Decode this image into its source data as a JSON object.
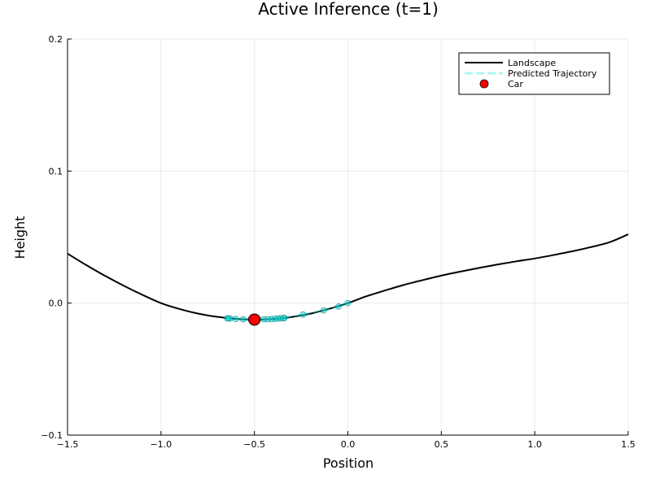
{
  "chart_data": {
    "type": "line",
    "title": "Active Inference (t=1)",
    "xlabel": "Position",
    "ylabel": "Height",
    "xlim": [
      -1.5,
      1.5
    ],
    "ylim": [
      -0.1,
      0.2
    ],
    "xticks": [
      -1.5,
      -1.0,
      -0.5,
      0.0,
      0.5,
      1.0,
      1.5
    ],
    "xtick_labels": [
      "−1.5",
      "−1.0",
      "−0.5",
      "0.0",
      "0.5",
      "1.0",
      "1.5"
    ],
    "yticks": [
      -0.1,
      0.0,
      0.1,
      0.2
    ],
    "ytick_labels": [
      "−0.1",
      "0.0",
      "0.1",
      "0.2"
    ],
    "grid": true,
    "legend_position": "top-right",
    "series": [
      {
        "name": "Landscape",
        "kind": "line",
        "color": "#000000",
        "x": [
          -1.5,
          -1.4,
          -1.3,
          -1.2,
          -1.1,
          -1.0,
          -0.9,
          -0.8,
          -0.7,
          -0.6,
          -0.5,
          -0.4,
          -0.3,
          -0.2,
          -0.1,
          0.0,
          0.1,
          0.2,
          0.3,
          0.4,
          0.5,
          0.6,
          0.7,
          0.8,
          0.9,
          1.0,
          1.1,
          1.2,
          1.3,
          1.4,
          1.5
        ],
        "y": [
          0.0375,
          0.0288,
          0.0207,
          0.0132,
          0.0063,
          0.0,
          -0.0045,
          -0.008,
          -0.0104,
          -0.0119,
          -0.0125,
          -0.0121,
          -0.0105,
          -0.008,
          -0.0043,
          0.0,
          0.0052,
          0.0096,
          0.0138,
          0.0174,
          0.0208,
          0.0238,
          0.0266,
          0.0292,
          0.0316,
          0.0338,
          0.0364,
          0.0392,
          0.0424,
          0.0461,
          0.0521
        ]
      },
      {
        "name": "Predicted Trajectory",
        "kind": "dashed-line-with-markers",
        "color": "#00e5e5",
        "x": [
          0.0,
          -0.05,
          -0.13,
          -0.24,
          -0.34,
          -0.345,
          -0.36,
          -0.375,
          -0.39,
          -0.41,
          -0.43,
          -0.45,
          -0.48,
          -0.5,
          -0.52,
          -0.56,
          -0.6,
          -0.63,
          -0.645,
          -0.64
        ],
        "y": [
          0.0,
          -0.0025,
          -0.0055,
          -0.0087,
          -0.0113,
          -0.0114,
          -0.0115,
          -0.0117,
          -0.0119,
          -0.0121,
          -0.0122,
          -0.0123,
          -0.0124,
          -0.0125,
          -0.0124,
          -0.0122,
          -0.012,
          -0.0117,
          -0.0115,
          -0.0116
        ]
      },
      {
        "name": "Car",
        "kind": "scatter",
        "color": "#ff0000",
        "x": [
          -0.5
        ],
        "y": [
          -0.0125
        ]
      }
    ]
  }
}
